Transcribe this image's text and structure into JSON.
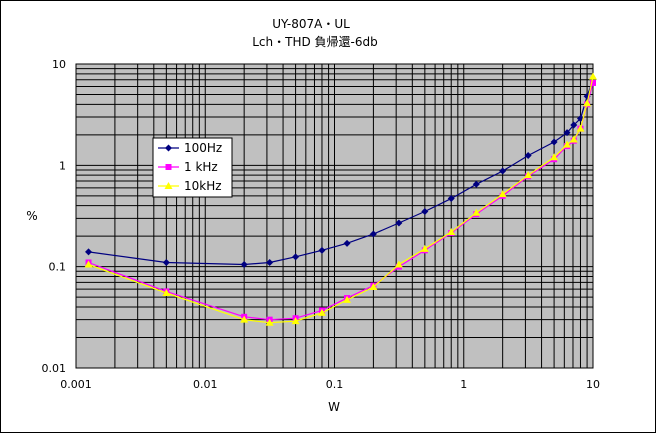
{
  "chart_data": {
    "type": "line",
    "title": "UY-807A・UL",
    "subtitle": "Lch・THD 負帰還-6db",
    "xlabel": "W",
    "ylabel": "%",
    "xscale": "log",
    "yscale": "log",
    "xlim": [
      0.001,
      10
    ],
    "ylim": [
      0.01,
      10
    ],
    "x_tick_labels": [
      "0.001",
      "0.01",
      "0.1",
      "1",
      "10"
    ],
    "y_tick_labels": [
      "0.01",
      "0.1",
      "1",
      "10"
    ],
    "grid": true,
    "plot_background": "#c0c0c0",
    "legend_position": "upper-left inside",
    "series": [
      {
        "name": "100Hz",
        "color": "#000080",
        "marker": "diamond",
        "x": [
          0.00125,
          0.005,
          0.02,
          0.0315,
          0.05,
          0.08,
          0.125,
          0.2,
          0.315,
          0.5,
          0.8,
          1.25,
          2.0,
          3.15,
          5.0,
          6.3,
          7.1,
          8.0,
          9.0,
          10.0
        ],
        "y": [
          0.14,
          0.11,
          0.105,
          0.11,
          0.125,
          0.145,
          0.17,
          0.21,
          0.27,
          0.35,
          0.47,
          0.65,
          0.88,
          1.25,
          1.7,
          2.1,
          2.5,
          2.9,
          4.8,
          7.0
        ]
      },
      {
        "name": "1 kHz",
        "color": "#ff00ff",
        "marker": "square",
        "x": [
          0.00125,
          0.005,
          0.02,
          0.0315,
          0.05,
          0.08,
          0.125,
          0.2,
          0.315,
          0.5,
          0.8,
          1.25,
          2.0,
          3.15,
          5.0,
          6.3,
          7.1,
          8.0,
          9.0,
          10.0
        ],
        "y": [
          0.11,
          0.057,
          0.032,
          0.03,
          0.031,
          0.037,
          0.049,
          0.065,
          0.1,
          0.145,
          0.215,
          0.33,
          0.5,
          0.78,
          1.15,
          1.55,
          1.75,
          2.3,
          4.0,
          6.5
        ]
      },
      {
        "name": "10kHz",
        "color": "#ffff00",
        "marker": "triangle",
        "x": [
          0.00125,
          0.005,
          0.02,
          0.0315,
          0.05,
          0.08,
          0.125,
          0.2,
          0.315,
          0.5,
          0.8,
          1.25,
          2.0,
          3.15,
          5.0,
          6.3,
          7.1,
          8.0,
          9.0,
          10.0
        ],
        "y": [
          0.105,
          0.055,
          0.03,
          0.028,
          0.029,
          0.035,
          0.047,
          0.063,
          0.105,
          0.15,
          0.22,
          0.34,
          0.52,
          0.8,
          1.2,
          1.6,
          1.8,
          2.3,
          4.1,
          7.5
        ]
      }
    ]
  }
}
